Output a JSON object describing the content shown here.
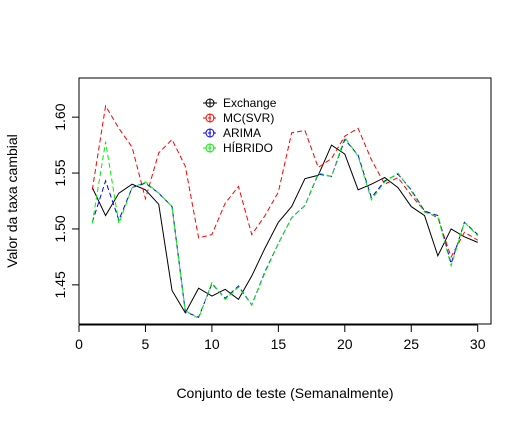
{
  "chart_data": {
    "type": "line",
    "xlabel": "Conjunto de teste (Semanalmente)",
    "ylabel": "Valor da taxa cambial",
    "xlim": [
      0,
      31
    ],
    "ylim": [
      1.415,
      1.635
    ],
    "xticks": [
      0,
      5,
      10,
      15,
      20,
      25,
      30
    ],
    "yticks": [
      1.45,
      1.5,
      1.55,
      1.6
    ],
    "ytick_labels": [
      "1.45",
      "1.50",
      "1.55",
      "1.60"
    ],
    "legend_position": "top-center",
    "series": [
      {
        "name": "Exchange",
        "color": "#000000",
        "dash": "solid",
        "x": [
          1,
          2,
          3,
          4,
          5,
          6,
          7,
          8,
          9,
          10,
          11,
          12,
          13,
          14,
          15,
          16,
          17,
          18,
          19,
          20,
          21,
          22,
          23,
          24,
          25,
          26,
          27,
          28,
          29,
          30
        ],
        "values": [
          1.537,
          1.512,
          1.532,
          1.54,
          1.535,
          1.522,
          1.445,
          1.425,
          1.447,
          1.44,
          1.446,
          1.437,
          1.458,
          1.483,
          1.506,
          1.52,
          1.545,
          1.548,
          1.575,
          1.567,
          1.535,
          1.54,
          1.546,
          1.537,
          1.52,
          1.512,
          1.476,
          1.5,
          1.493,
          1.488
        ]
      },
      {
        "name": "MC(SVR)",
        "color": "#ff0000",
        "dash": "dashed",
        "x": [
          1,
          2,
          3,
          4,
          5,
          6,
          7,
          8,
          9,
          10,
          11,
          12,
          13,
          14,
          15,
          16,
          17,
          18,
          19,
          20,
          21,
          22,
          23,
          24,
          25,
          26,
          27,
          28,
          29,
          30
        ],
        "values": [
          1.535,
          1.61,
          1.59,
          1.573,
          1.527,
          1.568,
          1.58,
          1.556,
          1.492,
          1.495,
          1.523,
          1.538,
          1.495,
          1.512,
          1.533,
          1.586,
          1.588,
          1.555,
          1.563,
          1.583,
          1.59,
          1.562,
          1.54,
          1.546,
          1.53,
          1.516,
          1.51,
          1.475,
          1.497,
          1.49
        ]
      },
      {
        "name": "ARIMA",
        "color": "#0000ff",
        "dash": "dashed",
        "x": [
          1,
          2,
          3,
          4,
          5,
          6,
          7,
          8,
          9,
          10,
          11,
          12,
          13,
          14,
          15,
          16,
          17,
          18,
          19,
          20,
          21,
          22,
          23,
          24,
          25,
          26,
          27,
          28,
          29,
          30
        ],
        "values": [
          1.506,
          1.543,
          1.508,
          1.537,
          1.541,
          1.532,
          1.52,
          1.426,
          1.421,
          1.451,
          1.438,
          1.449,
          1.432,
          1.462,
          1.487,
          1.51,
          1.521,
          1.549,
          1.547,
          1.58,
          1.566,
          1.528,
          1.543,
          1.549,
          1.535,
          1.516,
          1.512,
          1.469,
          1.506,
          1.495
        ]
      },
      {
        "name": "HÍBRIDO",
        "color": "#00ee00",
        "dash": "dashed",
        "x": [
          1,
          2,
          3,
          4,
          5,
          6,
          7,
          8,
          9,
          10,
          11,
          12,
          13,
          14,
          15,
          16,
          17,
          18,
          19,
          20,
          21,
          22,
          23,
          24,
          25,
          26,
          27,
          28,
          29,
          30
        ],
        "values": [
          1.505,
          1.578,
          1.505,
          1.537,
          1.542,
          1.532,
          1.52,
          1.427,
          1.42,
          1.452,
          1.437,
          1.448,
          1.432,
          1.461,
          1.487,
          1.51,
          1.521,
          1.55,
          1.547,
          1.582,
          1.565,
          1.526,
          1.542,
          1.55,
          1.534,
          1.515,
          1.511,
          1.467,
          1.506,
          1.494
        ]
      }
    ]
  }
}
